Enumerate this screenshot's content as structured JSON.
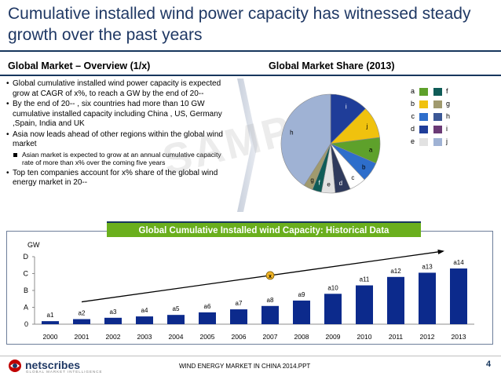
{
  "title": "Cumulative installed wind power capacity has witnessed steady growth over the past years",
  "left_section": {
    "heading": "Global Market – Overview (1/x)",
    "bullets": [
      "Global cumulative installed wind power capacity is expected grow at CAGR of x%, to reach a GW by the end of 20--",
      "By the end of 20-- , six countries had more than 10 GW cumulative installed capacity including China , US, Germany ,Spain, India and UK",
      "Asia now leads ahead of other regions within the global wind market",
      "Top ten companies account for x% share of the global wind energy market in 20--"
    ],
    "sub_bullet": "Asian market is expected to grow at an annual cumulative capacity rate of more than x% over the coming five years"
  },
  "right_section": {
    "heading": "Global Market Share (2013)",
    "watermark": "SAMPLE"
  },
  "pie_chart": {
    "type": "pie",
    "title": "Global Market Share (2013)",
    "slice_labels": [
      "i",
      "j",
      "a",
      "b",
      "c",
      "d",
      "e",
      "f",
      "g",
      "h"
    ],
    "values": [
      12.5,
      10.5,
      8.5,
      6.5,
      5.5,
      5,
      4.5,
      3,
      3,
      41
    ],
    "colors": [
      "#1f3d99",
      "#f0c20e",
      "#5ea12b",
      "#2e6ecb",
      "#ffffff",
      "#2f3a5c",
      "#e2e2e2",
      "#0f5c57",
      "#a09a6e",
      "#9fb2d4"
    ]
  },
  "legend": {
    "items": [
      {
        "label": "a",
        "color": "#5ea12b"
      },
      {
        "label": "b",
        "color": "#f0c20e"
      },
      {
        "label": "c",
        "color": "#2e6ecb"
      },
      {
        "label": "d",
        "color": "#1f3d99"
      },
      {
        "label": "e",
        "color": "#e2e2e2"
      },
      {
        "label": "f",
        "color": "#0f5c57"
      },
      {
        "label": "g",
        "color": "#a09a6e"
      },
      {
        "label": "h",
        "color": "#3c5896"
      },
      {
        "label": "i",
        "color": "#6b3a76"
      },
      {
        "label": "j",
        "color": "#9fb2d4"
      }
    ]
  },
  "banner": "Global Cumulative Installed wind Capacity: Historical Data",
  "chart_data": {
    "type": "bar",
    "title": "Global Cumulative Installed wind Capacity: Historical Data",
    "ylabel": "GW",
    "xlabel": "",
    "yticks": [
      "0",
      "A",
      "B",
      "C",
      "D"
    ],
    "ylim": [
      0,
      4
    ],
    "categories": [
      "2000",
      "2001",
      "2002",
      "2003",
      "2004",
      "2005",
      "2006",
      "2007",
      "2008",
      "2009",
      "2010",
      "2011",
      "2012",
      "2013"
    ],
    "values": [
      0.18,
      0.3,
      0.38,
      0.46,
      0.55,
      0.7,
      0.88,
      1.08,
      1.4,
      1.8,
      2.3,
      2.8,
      3.05,
      3.3
    ],
    "data_labels": [
      "a1",
      "a2",
      "a3",
      "a4",
      "a5",
      "a6",
      "a7",
      "a8",
      "a9",
      "a10",
      "a11",
      "a12",
      "a13",
      "a14"
    ],
    "bar_color": "#0c2a8c",
    "trend_label": "x"
  },
  "footer": {
    "logo_text": "netscribes",
    "logo_tagline": "GLOBAL MARKET INTELLIGENCE",
    "doc_title": "WIND ENERGY MARKET IN CHINA 2014.PPT",
    "page_number": "4"
  }
}
